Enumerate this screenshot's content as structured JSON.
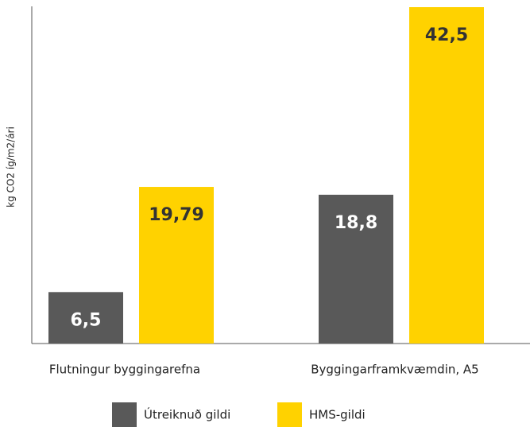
{
  "chart_data": {
    "type": "bar",
    "y_label": "kg CO2 íg/m2/ári",
    "categories": [
      "Flutningur byggingarefna",
      "Byggingarframkvæmdin, A5"
    ],
    "series": [
      {
        "name": "Útreiknuð gildi",
        "color": "#595959",
        "label_color": "#ffffff",
        "values": [
          6.5,
          18.8
        ],
        "value_labels": [
          "6,5",
          "18,8"
        ]
      },
      {
        "name": "HMS-gildi",
        "color": "#ffd200",
        "label_color": "#333333",
        "values": [
          19.79,
          42.5
        ],
        "value_labels": [
          "19,79",
          "42,5"
        ]
      }
    ],
    "ylim": [
      0,
      42.5
    ],
    "grid": false,
    "legend": "bottom"
  }
}
